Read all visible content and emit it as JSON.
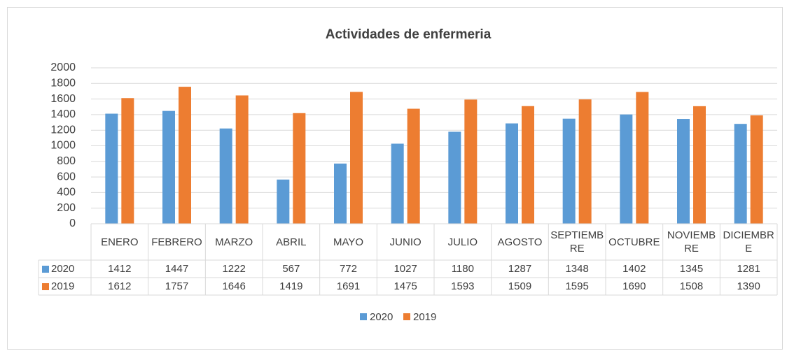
{
  "chart_data": {
    "type": "bar",
    "title": "Actividades de enfermeria",
    "categories": [
      "ENERO",
      "FEBRERO",
      "MARZO",
      "ABRIL",
      "MAYO",
      "JUNIO",
      "JULIO",
      "AGOSTO",
      "SEPTIEMBRE",
      "OCTUBRE",
      "NOVIEMBRE",
      "DICIEMBRE"
    ],
    "series": [
      {
        "name": "2020",
        "color": "#5b9bd5",
        "values": [
          1412,
          1447,
          1222,
          567,
          772,
          1027,
          1180,
          1287,
          1348,
          1402,
          1345,
          1281
        ]
      },
      {
        "name": "2019",
        "color": "#ed7d31",
        "values": [
          1612,
          1757,
          1646,
          1419,
          1691,
          1475,
          1593,
          1509,
          1595,
          1690,
          1508,
          1390
        ]
      }
    ],
    "ylim": [
      0,
      2000
    ],
    "yticks": [
      0,
      200,
      400,
      600,
      800,
      1000,
      1200,
      1400,
      1600,
      1800,
      2000
    ],
    "grid": true,
    "legend": "bottom"
  }
}
